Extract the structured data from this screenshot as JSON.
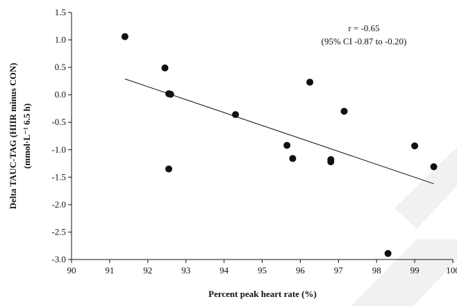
{
  "chart_data": {
    "type": "scatter",
    "xlabel": "Percent peak heart rate (%)",
    "ylabel_line1": "Delta TAUC-TAG (HIIR minus CON)",
    "ylabel_line2": "(mmol·L⁻¹ 6.5 h)",
    "xlim": [
      90,
      100
    ],
    "ylim": [
      -3.0,
      1.5
    ],
    "x_ticks": [
      90,
      91,
      92,
      93,
      94,
      95,
      96,
      97,
      98,
      99,
      100
    ],
    "y_ticks": [
      1.5,
      1.0,
      0.5,
      0.0,
      -0.5,
      -1.0,
      -1.5,
      -2.0,
      -2.5,
      -3.0
    ],
    "y_tick_labels": [
      "1.5",
      "1.0",
      "0.5",
      "0.0",
      "-0.5",
      "-1.0",
      "-1.5",
      "-2.0",
      "-2.5",
      "-3.0"
    ],
    "grid": false,
    "points": [
      {
        "x": 91.4,
        "y": 1.06
      },
      {
        "x": 92.45,
        "y": 0.49
      },
      {
        "x": 92.55,
        "y": 0.02
      },
      {
        "x": 92.6,
        "y": 0.01
      },
      {
        "x": 92.55,
        "y": -1.35
      },
      {
        "x": 94.3,
        "y": -0.36
      },
      {
        "x": 95.65,
        "y": -0.92
      },
      {
        "x": 95.8,
        "y": -1.16
      },
      {
        "x": 96.25,
        "y": 0.23
      },
      {
        "x": 96.8,
        "y": -1.18
      },
      {
        "x": 96.8,
        "y": -1.22
      },
      {
        "x": 97.15,
        "y": -0.3
      },
      {
        "x": 98.3,
        "y": -2.89
      },
      {
        "x": 99.0,
        "y": -0.93
      },
      {
        "x": 99.5,
        "y": -1.31
      }
    ],
    "trendline": {
      "x": [
        91.4,
        99.5
      ],
      "y": [
        0.29,
        -1.62
      ]
    },
    "annotation": {
      "line1": "r = -0.65",
      "line2": "(95% CI -0.87 to -0.20)"
    },
    "colors": {
      "points": "#111111",
      "line": "#111111",
      "axis": "#111111",
      "watermark": "#f1f1f1"
    }
  }
}
